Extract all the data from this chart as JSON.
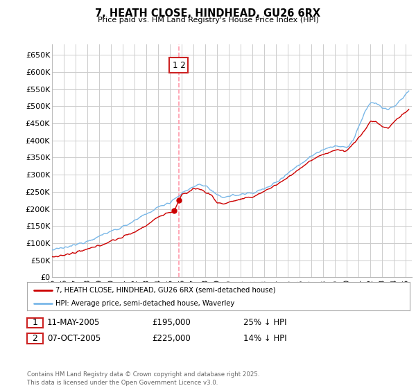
{
  "title": "7, HEATH CLOSE, HINDHEAD, GU26 6RX",
  "subtitle": "Price paid vs. HM Land Registry's House Price Index (HPI)",
  "xlim_start": 1995.0,
  "xlim_end": 2025.5,
  "ylim_min": 0,
  "ylim_max": 680000,
  "yticks": [
    0,
    50000,
    100000,
    150000,
    200000,
    250000,
    300000,
    350000,
    400000,
    450000,
    500000,
    550000,
    600000,
    650000
  ],
  "ytick_labels": [
    "£0",
    "£50K",
    "£100K",
    "£150K",
    "£200K",
    "£250K",
    "£300K",
    "£350K",
    "£400K",
    "£450K",
    "£500K",
    "£550K",
    "£600K",
    "£650K"
  ],
  "xtick_years": [
    1995,
    1996,
    1997,
    1998,
    1999,
    2000,
    2001,
    2002,
    2003,
    2004,
    2005,
    2006,
    2007,
    2008,
    2009,
    2010,
    2011,
    2012,
    2013,
    2014,
    2015,
    2016,
    2017,
    2018,
    2019,
    2020,
    2021,
    2022,
    2023,
    2024,
    2025
  ],
  "xtick_labels": [
    "95",
    "96",
    "97",
    "98",
    "99",
    "00",
    "01",
    "02",
    "03",
    "04",
    "05",
    "06",
    "07",
    "08",
    "09",
    "10",
    "11",
    "12",
    "13",
    "14",
    "15",
    "16",
    "17",
    "18",
    "19",
    "20",
    "21",
    "22",
    "23",
    "24",
    "25"
  ],
  "hpi_color": "#7ab8e8",
  "price_color": "#cc0000",
  "vline_color": "#ff99aa",
  "vline_x": 2005.75,
  "dot_color": "#cc0000",
  "t1_x": 2005.36,
  "t1_y": 195000,
  "t2_x": 2005.77,
  "t2_y": 225000,
  "legend_entries": [
    "7, HEATH CLOSE, HINDHEAD, GU26 6RX (semi-detached house)",
    "HPI: Average price, semi-detached house, Waverley"
  ],
  "table_rows": [
    {
      "num": "1",
      "date": "11-MAY-2005",
      "price": "£195,000",
      "hpi": "25% ↓ HPI"
    },
    {
      "num": "2",
      "date": "07-OCT-2005",
      "price": "£225,000",
      "hpi": "14% ↓ HPI"
    }
  ],
  "footer": "Contains HM Land Registry data © Crown copyright and database right 2025.\nThis data is licensed under the Open Government Licence v3.0.",
  "bg": "#ffffff",
  "grid_color": "#cccccc"
}
